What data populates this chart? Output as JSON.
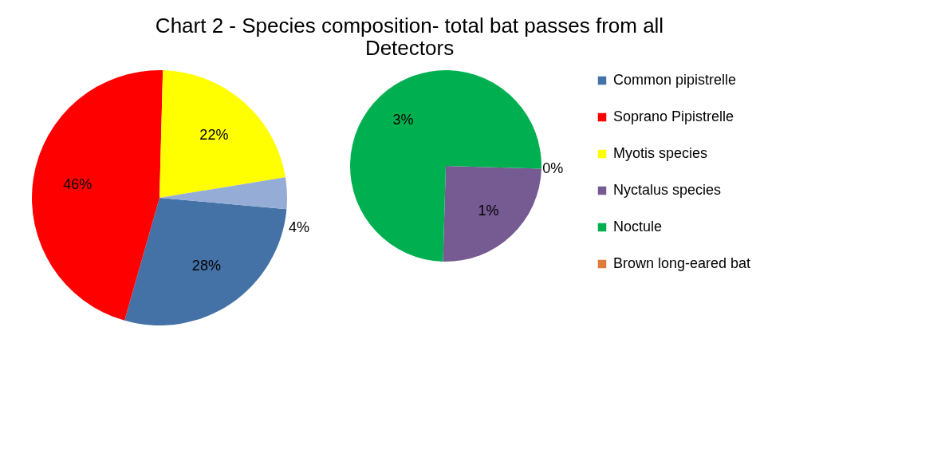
{
  "chart_data": [
    {
      "type": "pie",
      "title": "Chart 2 - Species composition- total bat passes from all Detectors",
      "categories": [
        "Common pipistrelle",
        "Soprano Pipistrelle",
        "Myotis species",
        null
      ],
      "values": [
        28,
        46,
        22,
        4
      ],
      "colors": [
        "#4472a6",
        "#ff0000",
        "#ffff00",
        "#95acd6"
      ],
      "value_labels": [
        "28%",
        "46%",
        "22%",
        "4%"
      ],
      "legend": "right"
    },
    {
      "type": "pie",
      "categories": [
        "Nyctalus species",
        "Noctule",
        "Brown long-eared bat"
      ],
      "values": [
        1,
        3,
        0
      ],
      "colors": [
        "#765a92",
        "#00b050",
        "#e07b39"
      ],
      "value_labels": [
        "1%",
        "3%",
        "0%"
      ],
      "legend": "right"
    }
  ]
}
